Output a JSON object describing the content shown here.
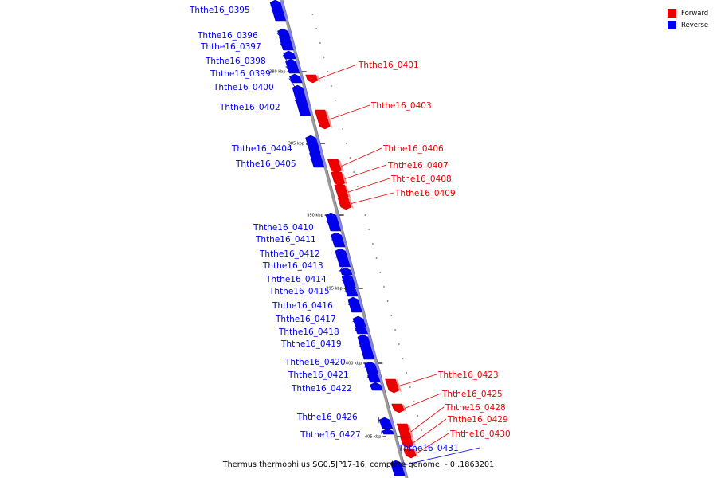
{
  "legend": [
    {
      "label": "Forward",
      "color": "#ee0000"
    },
    {
      "label": "Reverse",
      "color": "#0000ee"
    }
  ],
  "caption": "Thermus thermophilus SG0.5JP17-16, complete genome. - 0..1863201",
  "colors": {
    "forward": "#ee0000",
    "reverse": "#0000ee",
    "backbone": "#999999"
  },
  "ticks": [
    {
      "label": "380 kbp"
    },
    {
      "label": "385 kbp"
    },
    {
      "label": "390 kbp"
    },
    {
      "label": "395 kbp"
    },
    {
      "label": "400 kbp"
    },
    {
      "label": "405 kbp"
    }
  ],
  "genes": [
    {
      "name": "Ththe16_0395",
      "strand": "reverse"
    },
    {
      "name": "Ththe16_0396",
      "strand": "reverse"
    },
    {
      "name": "Ththe16_0397",
      "strand": "reverse"
    },
    {
      "name": "Ththe16_0398",
      "strand": "reverse"
    },
    {
      "name": "Ththe16_0399",
      "strand": "reverse"
    },
    {
      "name": "Ththe16_0400",
      "strand": "reverse"
    },
    {
      "name": "Ththe16_0401",
      "strand": "forward"
    },
    {
      "name": "Ththe16_0402",
      "strand": "reverse"
    },
    {
      "name": "Ththe16_0403",
      "strand": "forward"
    },
    {
      "name": "Ththe16_0404",
      "strand": "reverse"
    },
    {
      "name": "Ththe16_0405",
      "strand": "reverse"
    },
    {
      "name": "Ththe16_0406",
      "strand": "forward"
    },
    {
      "name": "Ththe16_0407",
      "strand": "forward"
    },
    {
      "name": "Ththe16_0408",
      "strand": "forward"
    },
    {
      "name": "Ththe16_0409",
      "strand": "forward"
    },
    {
      "name": "Ththe16_0410",
      "strand": "reverse"
    },
    {
      "name": "Ththe16_0411",
      "strand": "reverse"
    },
    {
      "name": "Ththe16_0412",
      "strand": "reverse"
    },
    {
      "name": "Ththe16_0413",
      "strand": "reverse"
    },
    {
      "name": "Ththe16_0414",
      "strand": "reverse"
    },
    {
      "name": "Ththe16_0415",
      "strand": "reverse"
    },
    {
      "name": "Ththe16_0416",
      "strand": "reverse"
    },
    {
      "name": "Ththe16_0417",
      "strand": "reverse"
    },
    {
      "name": "Ththe16_0418",
      "strand": "reverse"
    },
    {
      "name": "Ththe16_0419",
      "strand": "reverse"
    },
    {
      "name": "Ththe16_0420",
      "strand": "reverse"
    },
    {
      "name": "Ththe16_0421",
      "strand": "reverse"
    },
    {
      "name": "Ththe16_0422",
      "strand": "reverse"
    },
    {
      "name": "Ththe16_0423",
      "strand": "forward"
    },
    {
      "name": "Ththe16_0425",
      "strand": "forward"
    },
    {
      "name": "Ththe16_0426",
      "strand": "reverse"
    },
    {
      "name": "Ththe16_0427",
      "strand": "reverse"
    },
    {
      "name": "Ththe16_0428",
      "strand": "forward"
    },
    {
      "name": "Ththe16_0429",
      "strand": "forward"
    },
    {
      "name": "Ththe16_0430",
      "strand": "forward"
    },
    {
      "name": "Ththe16_0431",
      "strand": "reverse"
    }
  ]
}
